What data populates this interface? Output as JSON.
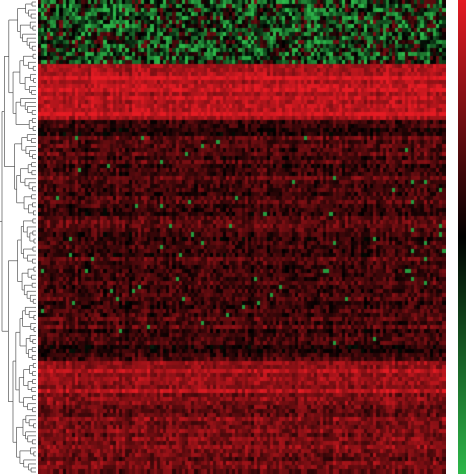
{
  "chart_data": {
    "type": "heatmap",
    "title": "",
    "xlabel": "",
    "ylabel": "",
    "n_columns": 130,
    "row_clustering": "hierarchical",
    "color_scale": {
      "low": "#2db84a",
      "mid": "#000000",
      "high": "#e51b23"
    },
    "row_blocks": [
      {
        "rows": 16,
        "mean": -0.35,
        "spread": 0.75,
        "pattern": "green-dominant"
      },
      {
        "rows": 14,
        "mean": 0.85,
        "spread": 0.18,
        "pattern": "bright-red"
      },
      {
        "rows": 4,
        "mean": 0.2,
        "spread": 0.2,
        "pattern": "dark-red"
      },
      {
        "rows": 52,
        "mean": 0.32,
        "spread": 0.22,
        "pattern": "dark-red-with-green-specks"
      },
      {
        "rows": 4,
        "mean": 0.25,
        "spread": 0.22,
        "pattern": "dark-red"
      },
      {
        "rows": 8,
        "mean": 0.7,
        "spread": 0.18,
        "pattern": "bright-red"
      },
      {
        "rows": 20,
        "mean": 0.5,
        "spread": 0.22,
        "pattern": "medium-red"
      }
    ],
    "legend": {
      "type": "colorbar",
      "position": "right"
    }
  }
}
